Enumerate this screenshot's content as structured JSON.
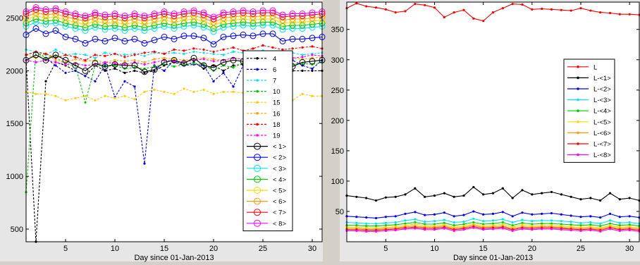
{
  "chart_data": [
    {
      "type": "line",
      "title": "",
      "xlabel": "Day since 01-Jan-2013",
      "ylabel": "",
      "xlim": [
        1,
        31
      ],
      "ylim": [
        380,
        2650
      ],
      "xticks": [
        5,
        10,
        15,
        20,
        25,
        30
      ],
      "yticks": [
        500,
        1000,
        1500,
        2000,
        2500
      ],
      "grid": false,
      "legend_position": "right",
      "x": [
        1,
        2,
        3,
        4,
        5,
        6,
        7,
        8,
        9,
        10,
        11,
        12,
        13,
        14,
        15,
        16,
        17,
        18,
        19,
        20,
        21,
        22,
        23,
        24,
        25,
        26,
        27,
        28,
        29,
        30,
        31
      ],
      "series": [
        {
          "name": "4",
          "color": "#000000",
          "style": "dotted",
          "marker": "dot",
          "values": [
            2100,
            380,
            1900,
            2080,
            2050,
            2000,
            1950,
            2050,
            2000,
            2020,
            1980,
            2000,
            1980,
            2000,
            2050,
            2080,
            2050,
            2080,
            2020,
            2050,
            2000,
            2050,
            2060,
            2080,
            2100,
            2100,
            1950,
            2000,
            2000,
            2000,
            2000
          ]
        },
        {
          "name": "6",
          "color": "#0000ff",
          "style": "dotted",
          "marker": "dot",
          "values": [
            2150,
            2180,
            2120,
            2050,
            1980,
            2000,
            1950,
            1900,
            2050,
            1750,
            1900,
            1850,
            1120,
            2050,
            2000,
            2100,
            2050,
            2060,
            2050,
            1900,
            1980,
            1850,
            2050,
            2100,
            2000,
            2120,
            2050,
            2100,
            2050,
            2020,
            2100
          ]
        },
        {
          "name": "7",
          "color": "#00e5ee",
          "style": "dotted",
          "marker": "dot",
          "values": [
            2200,
            2180,
            2150,
            2200,
            2150,
            2160,
            2150,
            2120,
            2170,
            2160,
            2150,
            2160,
            2140,
            2170,
            2160,
            2170,
            2160,
            2180,
            2170,
            2160,
            2150,
            2180,
            2170,
            2180,
            2190,
            2170,
            2160,
            2170,
            2150,
            2160,
            2170
          ]
        },
        {
          "name": "10",
          "color": "#00cc00",
          "style": "dotted",
          "marker": "dot",
          "values": [
            850,
            2180,
            2120,
            2130,
            2060,
            2050,
            1700,
            2050,
            2040,
            2050,
            2020,
            2030,
            2020,
            2040,
            2060,
            2040,
            2060,
            2070,
            2060,
            2000,
            2050,
            2030,
            2080,
            2060,
            2070,
            2060,
            2080,
            2060,
            2070,
            2060,
            2080
          ]
        },
        {
          "name": "15",
          "color": "#ffcc00",
          "style": "dotted",
          "marker": "dot",
          "values": [
            1800,
            1780,
            1780,
            1760,
            1720,
            1740,
            1760,
            1720,
            1760,
            1740,
            1760,
            1730,
            1800,
            1820,
            1800,
            1780,
            1830,
            1800,
            1820,
            1780,
            1800,
            1800,
            1790,
            1800,
            1820,
            1800,
            1800,
            1720,
            1780,
            1760,
            1760
          ]
        },
        {
          "name": "16",
          "color": "#ffa000",
          "style": "dotted",
          "marker": "dot",
          "values": [
            2150,
            2120,
            2160,
            2100,
            2080,
            2110,
            2090,
            2100,
            2080,
            2100,
            2090,
            2100,
            2080,
            2110,
            2120,
            2110,
            2100,
            2110,
            2120,
            2110,
            2100,
            2120,
            2110,
            2120,
            2110,
            2120,
            2130,
            2120,
            2110,
            2120,
            2130
          ]
        },
        {
          "name": "18",
          "color": "#ff0000",
          "style": "dotted",
          "marker": "dot",
          "values": [
            2150,
            2180,
            2160,
            2120,
            2150,
            2130,
            2100,
            2150,
            2140,
            2160,
            2130,
            2150,
            2170,
            2180,
            2160,
            2200,
            2190,
            2210,
            2200,
            2180,
            2200,
            2220,
            2190,
            2210,
            2240,
            2220,
            2200,
            2210,
            2220,
            2230,
            2210
          ]
        },
        {
          "name": "19",
          "color": "#ff00ff",
          "style": "dotted",
          "marker": "dot",
          "values": [
            2100,
            2080,
            2100,
            2080,
            2060,
            2070,
            2050,
            2060,
            2080,
            2070,
            2060,
            2080,
            2060,
            2080,
            2100,
            2090,
            2080,
            2100,
            2110,
            2090,
            2100,
            2120,
            2110,
            2130,
            2140,
            2150,
            2130,
            2120,
            2130,
            2150,
            2140
          ]
        },
        {
          "name": "< 1>",
          "color": "#000000",
          "style": "solid",
          "marker": "circle",
          "values": [
            2100,
            2150,
            2100,
            2150,
            2100,
            2050,
            2000,
            2070,
            2040,
            2060,
            2050,
            2050,
            1990,
            2010,
            2080,
            2100,
            2070,
            2120,
            2050,
            2030,
            2080,
            2100,
            2090,
            2080,
            2100,
            2070,
            2060,
            2040,
            2080,
            2090,
            2100
          ]
        },
        {
          "name": "< 2>",
          "color": "#0000ff",
          "style": "solid",
          "marker": "circle",
          "values": [
            2340,
            2400,
            2350,
            2380,
            2320,
            2300,
            2260,
            2300,
            2280,
            2310,
            2280,
            2300,
            2260,
            2290,
            2320,
            2300,
            2330,
            2330,
            2310,
            2250,
            2320,
            2330,
            2340,
            2330,
            2350,
            2350,
            2280,
            2300,
            2300,
            2310,
            2320
          ]
        },
        {
          "name": "< 3>",
          "color": "#00e5ee",
          "style": "solid",
          "marker": "circle",
          "values": [
            2420,
            2460,
            2440,
            2450,
            2420,
            2400,
            2380,
            2410,
            2390,
            2400,
            2380,
            2400,
            2380,
            2400,
            2420,
            2400,
            2420,
            2430,
            2410,
            2370,
            2410,
            2420,
            2430,
            2420,
            2430,
            2430,
            2390,
            2400,
            2400,
            2410,
            2420
          ]
        },
        {
          "name": "< 4>",
          "color": "#00cc00",
          "style": "solid",
          "marker": "circle",
          "values": [
            2450,
            2490,
            2470,
            2480,
            2450,
            2430,
            2410,
            2440,
            2420,
            2430,
            2410,
            2430,
            2410,
            2430,
            2450,
            2430,
            2450,
            2460,
            2440,
            2400,
            2440,
            2450,
            2460,
            2450,
            2460,
            2460,
            2420,
            2430,
            2430,
            2440,
            2450
          ]
        },
        {
          "name": "< 5>",
          "color": "#ffd700",
          "style": "solid",
          "marker": "circle",
          "values": [
            2480,
            2520,
            2500,
            2510,
            2480,
            2460,
            2440,
            2470,
            2450,
            2460,
            2440,
            2460,
            2440,
            2460,
            2480,
            2460,
            2480,
            2490,
            2470,
            2430,
            2470,
            2480,
            2490,
            2480,
            2490,
            2490,
            2450,
            2460,
            2460,
            2470,
            2480
          ]
        },
        {
          "name": "< 6>",
          "color": "#ff9900",
          "style": "solid",
          "marker": "circle",
          "values": [
            2510,
            2550,
            2530,
            2540,
            2510,
            2490,
            2470,
            2500,
            2480,
            2490,
            2470,
            2490,
            2470,
            2490,
            2510,
            2490,
            2510,
            2520,
            2500,
            2460,
            2500,
            2510,
            2520,
            2510,
            2520,
            2520,
            2480,
            2490,
            2490,
            2500,
            2510
          ]
        },
        {
          "name": "< 7>",
          "color": "#ff0000",
          "style": "solid",
          "marker": "circle",
          "values": [
            2540,
            2580,
            2560,
            2570,
            2540,
            2520,
            2500,
            2530,
            2510,
            2520,
            2500,
            2520,
            2500,
            2520,
            2540,
            2520,
            2540,
            2550,
            2530,
            2490,
            2530,
            2540,
            2550,
            2540,
            2550,
            2550,
            2510,
            2520,
            2520,
            2530,
            2540
          ]
        },
        {
          "name": "< 8>",
          "color": "#ff00ff",
          "style": "solid",
          "marker": "circle",
          "values": [
            2560,
            2600,
            2580,
            2590,
            2560,
            2540,
            2520,
            2550,
            2530,
            2540,
            2520,
            2540,
            2520,
            2540,
            2560,
            2540,
            2560,
            2570,
            2550,
            2510,
            2550,
            2560,
            2570,
            2560,
            2570,
            2570,
            2530,
            2540,
            2540,
            2550,
            2560
          ]
        }
      ]
    },
    {
      "type": "line",
      "title": "",
      "xlabel": "Day since 01-Jan-2013",
      "ylabel": "",
      "xlim": [
        1,
        31
      ],
      "ylim": [
        0,
        395
      ],
      "xticks": [
        5,
        10,
        15,
        20,
        25,
        30
      ],
      "yticks": [
        50,
        100,
        150,
        200,
        250,
        300,
        350
      ],
      "grid": false,
      "legend_position": "right",
      "x": [
        1,
        2,
        3,
        4,
        5,
        6,
        7,
        8,
        9,
        10,
        11,
        12,
        13,
        14,
        15,
        16,
        17,
        18,
        19,
        20,
        21,
        22,
        23,
        24,
        25,
        26,
        27,
        28,
        29,
        30,
        31
      ],
      "series": [
        {
          "name": "L",
          "color": "#ff0000",
          "style": "solid",
          "marker": "dot",
          "values": [
            385,
            393,
            388,
            386,
            383,
            378,
            380,
            392,
            390,
            386,
            370,
            378,
            382,
            368,
            364,
            378,
            385,
            392,
            391,
            383,
            384,
            383,
            382,
            381,
            385,
            381,
            378,
            377,
            375,
            375,
            374
          ]
        },
        {
          "name": "L-<1>",
          "color": "#000000",
          "style": "solid",
          "marker": "dot",
          "values": [
            76,
            74,
            72,
            68,
            73,
            74,
            78,
            88,
            74,
            76,
            80,
            74,
            76,
            90,
            78,
            80,
            88,
            72,
            85,
            78,
            80,
            82,
            78,
            74,
            70,
            72,
            68,
            80,
            70,
            72,
            68
          ]
        },
        {
          "name": "L-<2>",
          "color": "#0000ff",
          "style": "solid",
          "marker": "dot",
          "values": [
            42,
            41,
            40,
            39,
            41,
            42,
            46,
            49,
            44,
            45,
            48,
            42,
            44,
            50,
            45,
            46,
            49,
            42,
            48,
            45,
            46,
            47,
            45,
            43,
            41,
            42,
            40,
            46,
            41,
            42,
            40
          ]
        },
        {
          "name": "L-<3>",
          "color": "#00e5ee",
          "style": "solid",
          "marker": "dot",
          "values": [
            32,
            31,
            30,
            30,
            31,
            32,
            35,
            37,
            33,
            34,
            36,
            32,
            33,
            38,
            34,
            35,
            37,
            32,
            36,
            34,
            35,
            35,
            34,
            33,
            31,
            32,
            30,
            35,
            31,
            32,
            30
          ]
        },
        {
          "name": "L-<4>",
          "color": "#00cc00",
          "style": "solid",
          "marker": "dot",
          "values": [
            27,
            27,
            26,
            26,
            27,
            28,
            30,
            32,
            29,
            29,
            31,
            27,
            29,
            32,
            29,
            30,
            32,
            27,
            31,
            29,
            30,
            30,
            29,
            28,
            27,
            28,
            26,
            30,
            27,
            28,
            26
          ]
        },
        {
          "name": "L-<5>",
          "color": "#ffd700",
          "style": "solid",
          "marker": "dot",
          "values": [
            24,
            24,
            23,
            23,
            24,
            25,
            27,
            29,
            26,
            26,
            28,
            24,
            26,
            29,
            26,
            27,
            29,
            24,
            28,
            26,
            27,
            27,
            26,
            25,
            24,
            25,
            23,
            27,
            24,
            25,
            23
          ]
        },
        {
          "name": "L-<6>",
          "color": "#ff9900",
          "style": "solid",
          "marker": "dot",
          "values": [
            22,
            22,
            21,
            21,
            22,
            23,
            25,
            26,
            24,
            24,
            26,
            22,
            24,
            27,
            24,
            25,
            26,
            22,
            25,
            24,
            25,
            25,
            24,
            23,
            22,
            23,
            21,
            25,
            22,
            23,
            21
          ]
        },
        {
          "name": "L-<7>",
          "color": "#ff0000",
          "style": "solid",
          "marker": "dot",
          "values": [
            20,
            20,
            19,
            19,
            20,
            21,
            23,
            24,
            22,
            22,
            24,
            20,
            22,
            25,
            22,
            23,
            24,
            20,
            23,
            22,
            23,
            23,
            22,
            21,
            20,
            21,
            19,
            23,
            20,
            21,
            19
          ]
        },
        {
          "name": "L-<8>",
          "color": "#ff00ff",
          "style": "solid",
          "marker": "dot",
          "values": [
            18,
            18,
            17,
            17,
            18,
            19,
            21,
            22,
            20,
            20,
            22,
            18,
            20,
            23,
            20,
            21,
            22,
            18,
            21,
            20,
            21,
            21,
            20,
            19,
            18,
            19,
            17,
            21,
            18,
            19,
            17
          ]
        }
      ]
    }
  ]
}
